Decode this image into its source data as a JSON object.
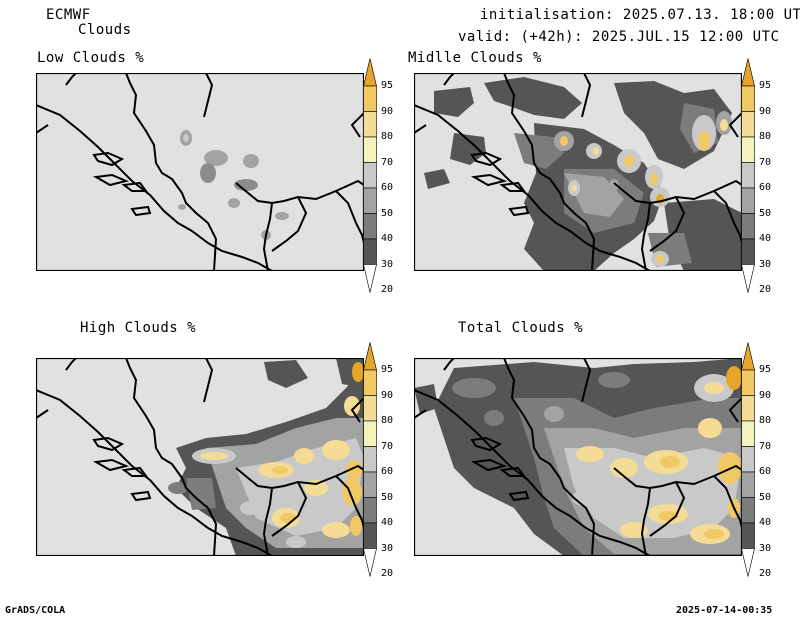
{
  "header": {
    "model": "ECMWF",
    "field": "Clouds",
    "initialisation": "initialisation: 2025.07.13. 18:00 UTC",
    "valid": "valid: (+42h): 2025.JUL.15 12:00 UTC"
  },
  "panels": [
    {
      "id": "low",
      "title": "Low Clouds %"
    },
    {
      "id": "middle",
      "title": "Midlle Clouds %"
    },
    {
      "id": "high",
      "title": "High Clouds %"
    },
    {
      "id": "total",
      "title": "Total Clouds %"
    }
  ],
  "colorbar": {
    "levels": [
      "20",
      "30",
      "40",
      "50",
      "60",
      "70",
      "80",
      "90",
      "95"
    ],
    "colors": [
      "#ffffff",
      "#555555",
      "#7c7c7c",
      "#a3a3a3",
      "#c9c9c9",
      "#f3f3be",
      "#f5dc96",
      "#f0c864",
      "#e6a52a"
    ]
  },
  "footer": {
    "left": "GrADS/COLA",
    "right": "2025-07-14-00:35"
  }
}
